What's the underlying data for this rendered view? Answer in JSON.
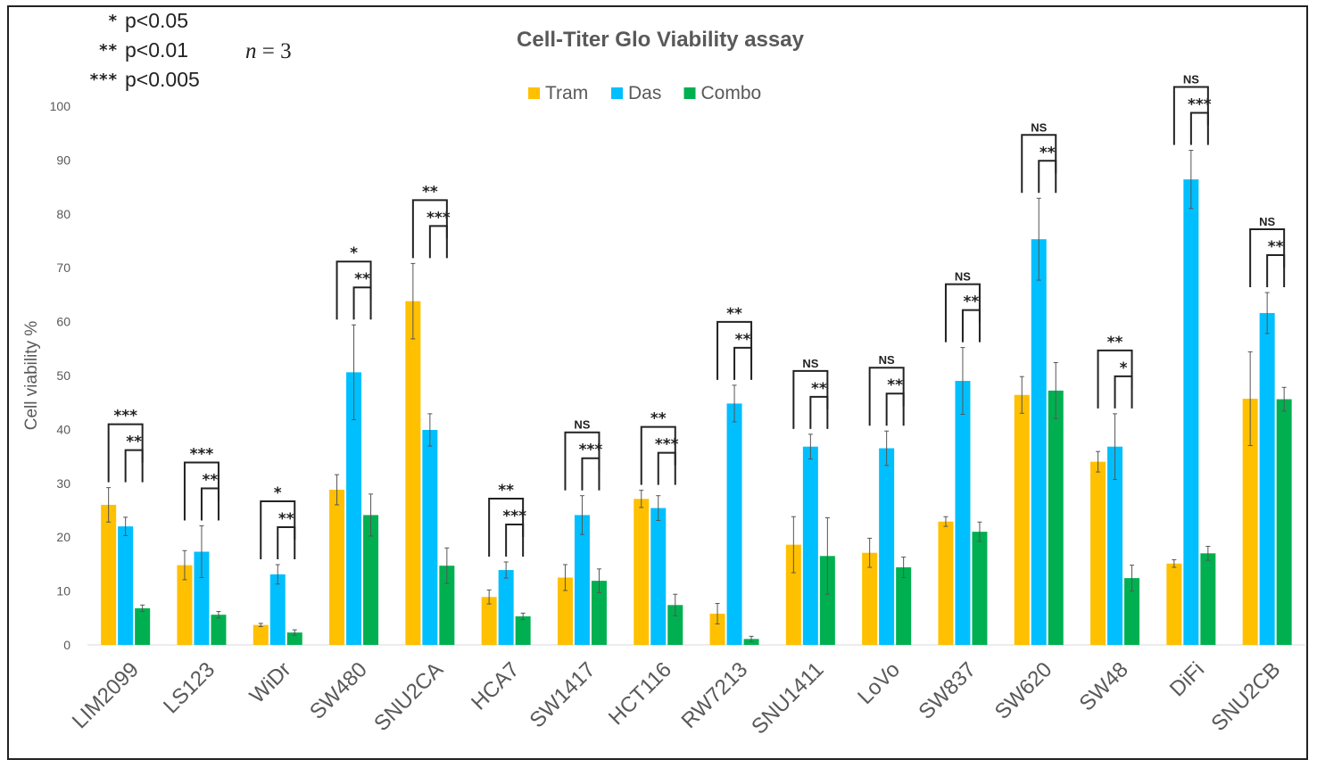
{
  "legend_notes": {
    "sig": [
      {
        "stars": "*",
        "label": "p<0.05"
      },
      {
        "stars": "**",
        "label": "p<0.01"
      },
      {
        "stars": "***",
        "label": "p<0.005"
      }
    ],
    "n_var": "n",
    "n_eq": " = 3"
  },
  "chart_data": {
    "type": "bar",
    "title": "Cell-Titer Glo Viability assay",
    "xlabel": "",
    "ylabel": "Cell viability %",
    "ylim": [
      0,
      100
    ],
    "yticks": [
      0,
      10,
      20,
      30,
      40,
      50,
      60,
      70,
      80,
      90,
      100
    ],
    "legend_position": "top-center",
    "categories": [
      "LIM2099",
      "LS123",
      "WiDr",
      "SW480",
      "SNU2CA",
      "HCA7",
      "SW1417",
      "HCT116",
      "RW7213",
      "SNU1411",
      "LoVo",
      "SW837",
      "SW620",
      "SW48",
      "DiFi",
      "SNU2CB"
    ],
    "series": [
      {
        "name": "Tram",
        "color": "#FFC000",
        "values": [
          26,
          14.8,
          3.7,
          28.8,
          63.8,
          8.9,
          12.5,
          27.1,
          5.8,
          18.6,
          17.1,
          22.9,
          46.4,
          34,
          15.1,
          45.7
        ],
        "errors": [
          3.2,
          2.7,
          0.3,
          2.8,
          7,
          1.3,
          2.4,
          1.6,
          1.9,
          5.2,
          2.7,
          0.9,
          3.4,
          1.9,
          0.7,
          8.7
        ]
      },
      {
        "name": "Das",
        "color": "#00BFFF",
        "values": [
          22,
          17.3,
          13.1,
          50.6,
          39.9,
          13.9,
          24.1,
          25.4,
          44.8,
          36.8,
          36.5,
          49,
          75.3,
          36.8,
          86.4,
          61.6
        ],
        "errors": [
          1.7,
          4.8,
          1.8,
          8.8,
          3,
          1.5,
          3.6,
          2.3,
          3.4,
          2.3,
          3.2,
          6.2,
          7.6,
          6.1,
          5.4,
          3.8
        ]
      },
      {
        "name": "Combo",
        "color": "#00B050",
        "values": [
          6.8,
          5.6,
          2.3,
          24.1,
          14.7,
          5.3,
          11.9,
          7.4,
          1.1,
          16.5,
          14.4,
          21,
          47.2,
          12.4,
          17,
          45.6
        ],
        "errors": [
          0.6,
          0.6,
          0.5,
          3.9,
          3.3,
          0.6,
          2.2,
          2,
          0.5,
          7.1,
          1.9,
          1.8,
          5.2,
          2.4,
          1.3,
          2.2
        ]
      }
    ],
    "significance": [
      {
        "cat": 0,
        "outer": "***",
        "inner": "**"
      },
      {
        "cat": 1,
        "outer": "***",
        "inner": "**"
      },
      {
        "cat": 2,
        "outer": "*",
        "inner": "**"
      },
      {
        "cat": 3,
        "outer": "*",
        "inner": "**"
      },
      {
        "cat": 4,
        "outer": "**",
        "inner": "***"
      },
      {
        "cat": 5,
        "outer": "**",
        "inner": "***"
      },
      {
        "cat": 6,
        "outer": "NS",
        "inner": "***"
      },
      {
        "cat": 7,
        "outer": "**",
        "inner": "***"
      },
      {
        "cat": 8,
        "outer": "**",
        "inner": "**"
      },
      {
        "cat": 9,
        "outer": "NS",
        "inner": "**"
      },
      {
        "cat": 10,
        "outer": "NS",
        "inner": "**"
      },
      {
        "cat": 11,
        "outer": "NS",
        "inner": "**"
      },
      {
        "cat": 12,
        "outer": "NS",
        "inner": "**"
      },
      {
        "cat": 13,
        "outer": "**",
        "inner": "*"
      },
      {
        "cat": 14,
        "outer": "NS",
        "inner": "***"
      },
      {
        "cat": 15,
        "outer": "NS",
        "inner": "**"
      }
    ]
  }
}
